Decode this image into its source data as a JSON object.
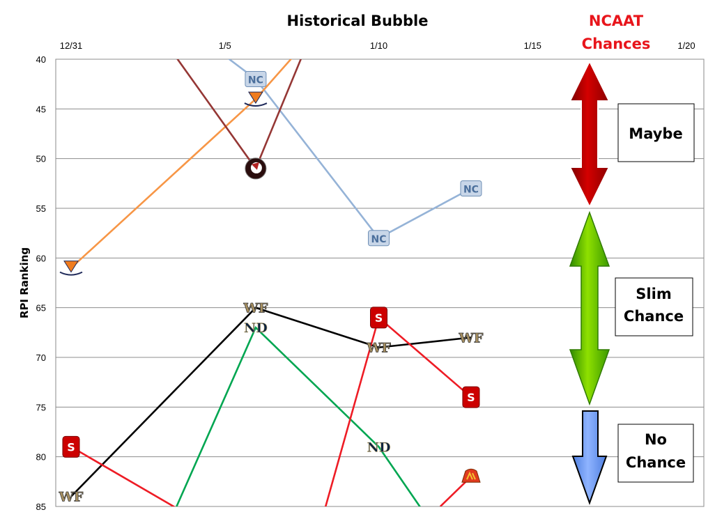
{
  "chart_data": {
    "type": "line",
    "title": "Historical Bubble",
    "side_title": [
      "NCAAT",
      "Chances"
    ],
    "ylabel": "RPI Ranking",
    "xlabel": "",
    "x_tick_labels": [
      "12/31",
      "1/5",
      "1/10",
      "1/15",
      "1/20"
    ],
    "x_tick_values": [
      0,
      5,
      10,
      15,
      20
    ],
    "xlim": [
      0,
      20
    ],
    "ylim": [
      85,
      40
    ],
    "y_inverted": true,
    "y_ticks": [
      40,
      45,
      50,
      55,
      60,
      65,
      70,
      75,
      80,
      85
    ],
    "grid": "horizontal",
    "series": [
      {
        "icon": "unc-logo-icon",
        "color": "#95b3d7",
        "points": [
          [
            3,
            35
          ],
          [
            6,
            42
          ],
          [
            10,
            58
          ],
          [
            13,
            53
          ]
        ]
      },
      {
        "icon": "virginia-logo-icon",
        "color": "#f79646",
        "points": [
          [
            0,
            61
          ],
          [
            6,
            44
          ],
          [
            8,
            37
          ]
        ]
      },
      {
        "icon": "florida-state-logo-icon",
        "color": "#953735",
        "points": [
          [
            3,
            38
          ],
          [
            6,
            51
          ],
          [
            8,
            36
          ]
        ]
      },
      {
        "icon": "wake-forest-logo-icon",
        "color": "#000000",
        "points": [
          [
            0,
            84
          ],
          [
            6,
            65
          ],
          [
            10,
            69
          ],
          [
            13,
            68
          ]
        ]
      },
      {
        "icon": "notre-dame-logo-icon",
        "color": "#00a651",
        "points": [
          [
            3,
            88
          ],
          [
            6,
            67
          ],
          [
            10,
            79
          ],
          [
            12,
            88
          ]
        ]
      },
      {
        "icon": "nc-state-logo-icon",
        "color": "#ee1c25",
        "points": [
          [
            0,
            79
          ],
          [
            5,
            88
          ],
          [
            8,
            88
          ],
          [
            10,
            66
          ],
          [
            13,
            74
          ]
        ]
      },
      {
        "icon": "maryland-logo-icon",
        "color": "#ee1c25",
        "points": [
          [
            12,
            85
          ],
          [
            13,
            82
          ]
        ]
      }
    ],
    "chance_zones": [
      {
        "label_lines": [
          "Maybe"
        ],
        "arrow_color": "#c00000",
        "arrow": "double"
      },
      {
        "label_lines": [
          "Slim",
          "Chance"
        ],
        "arrow_color": "#66cc00",
        "arrow": "double"
      },
      {
        "label_lines": [
          "No",
          "Chance"
        ],
        "arrow_color": "#6699ff",
        "arrow": "down"
      }
    ]
  }
}
